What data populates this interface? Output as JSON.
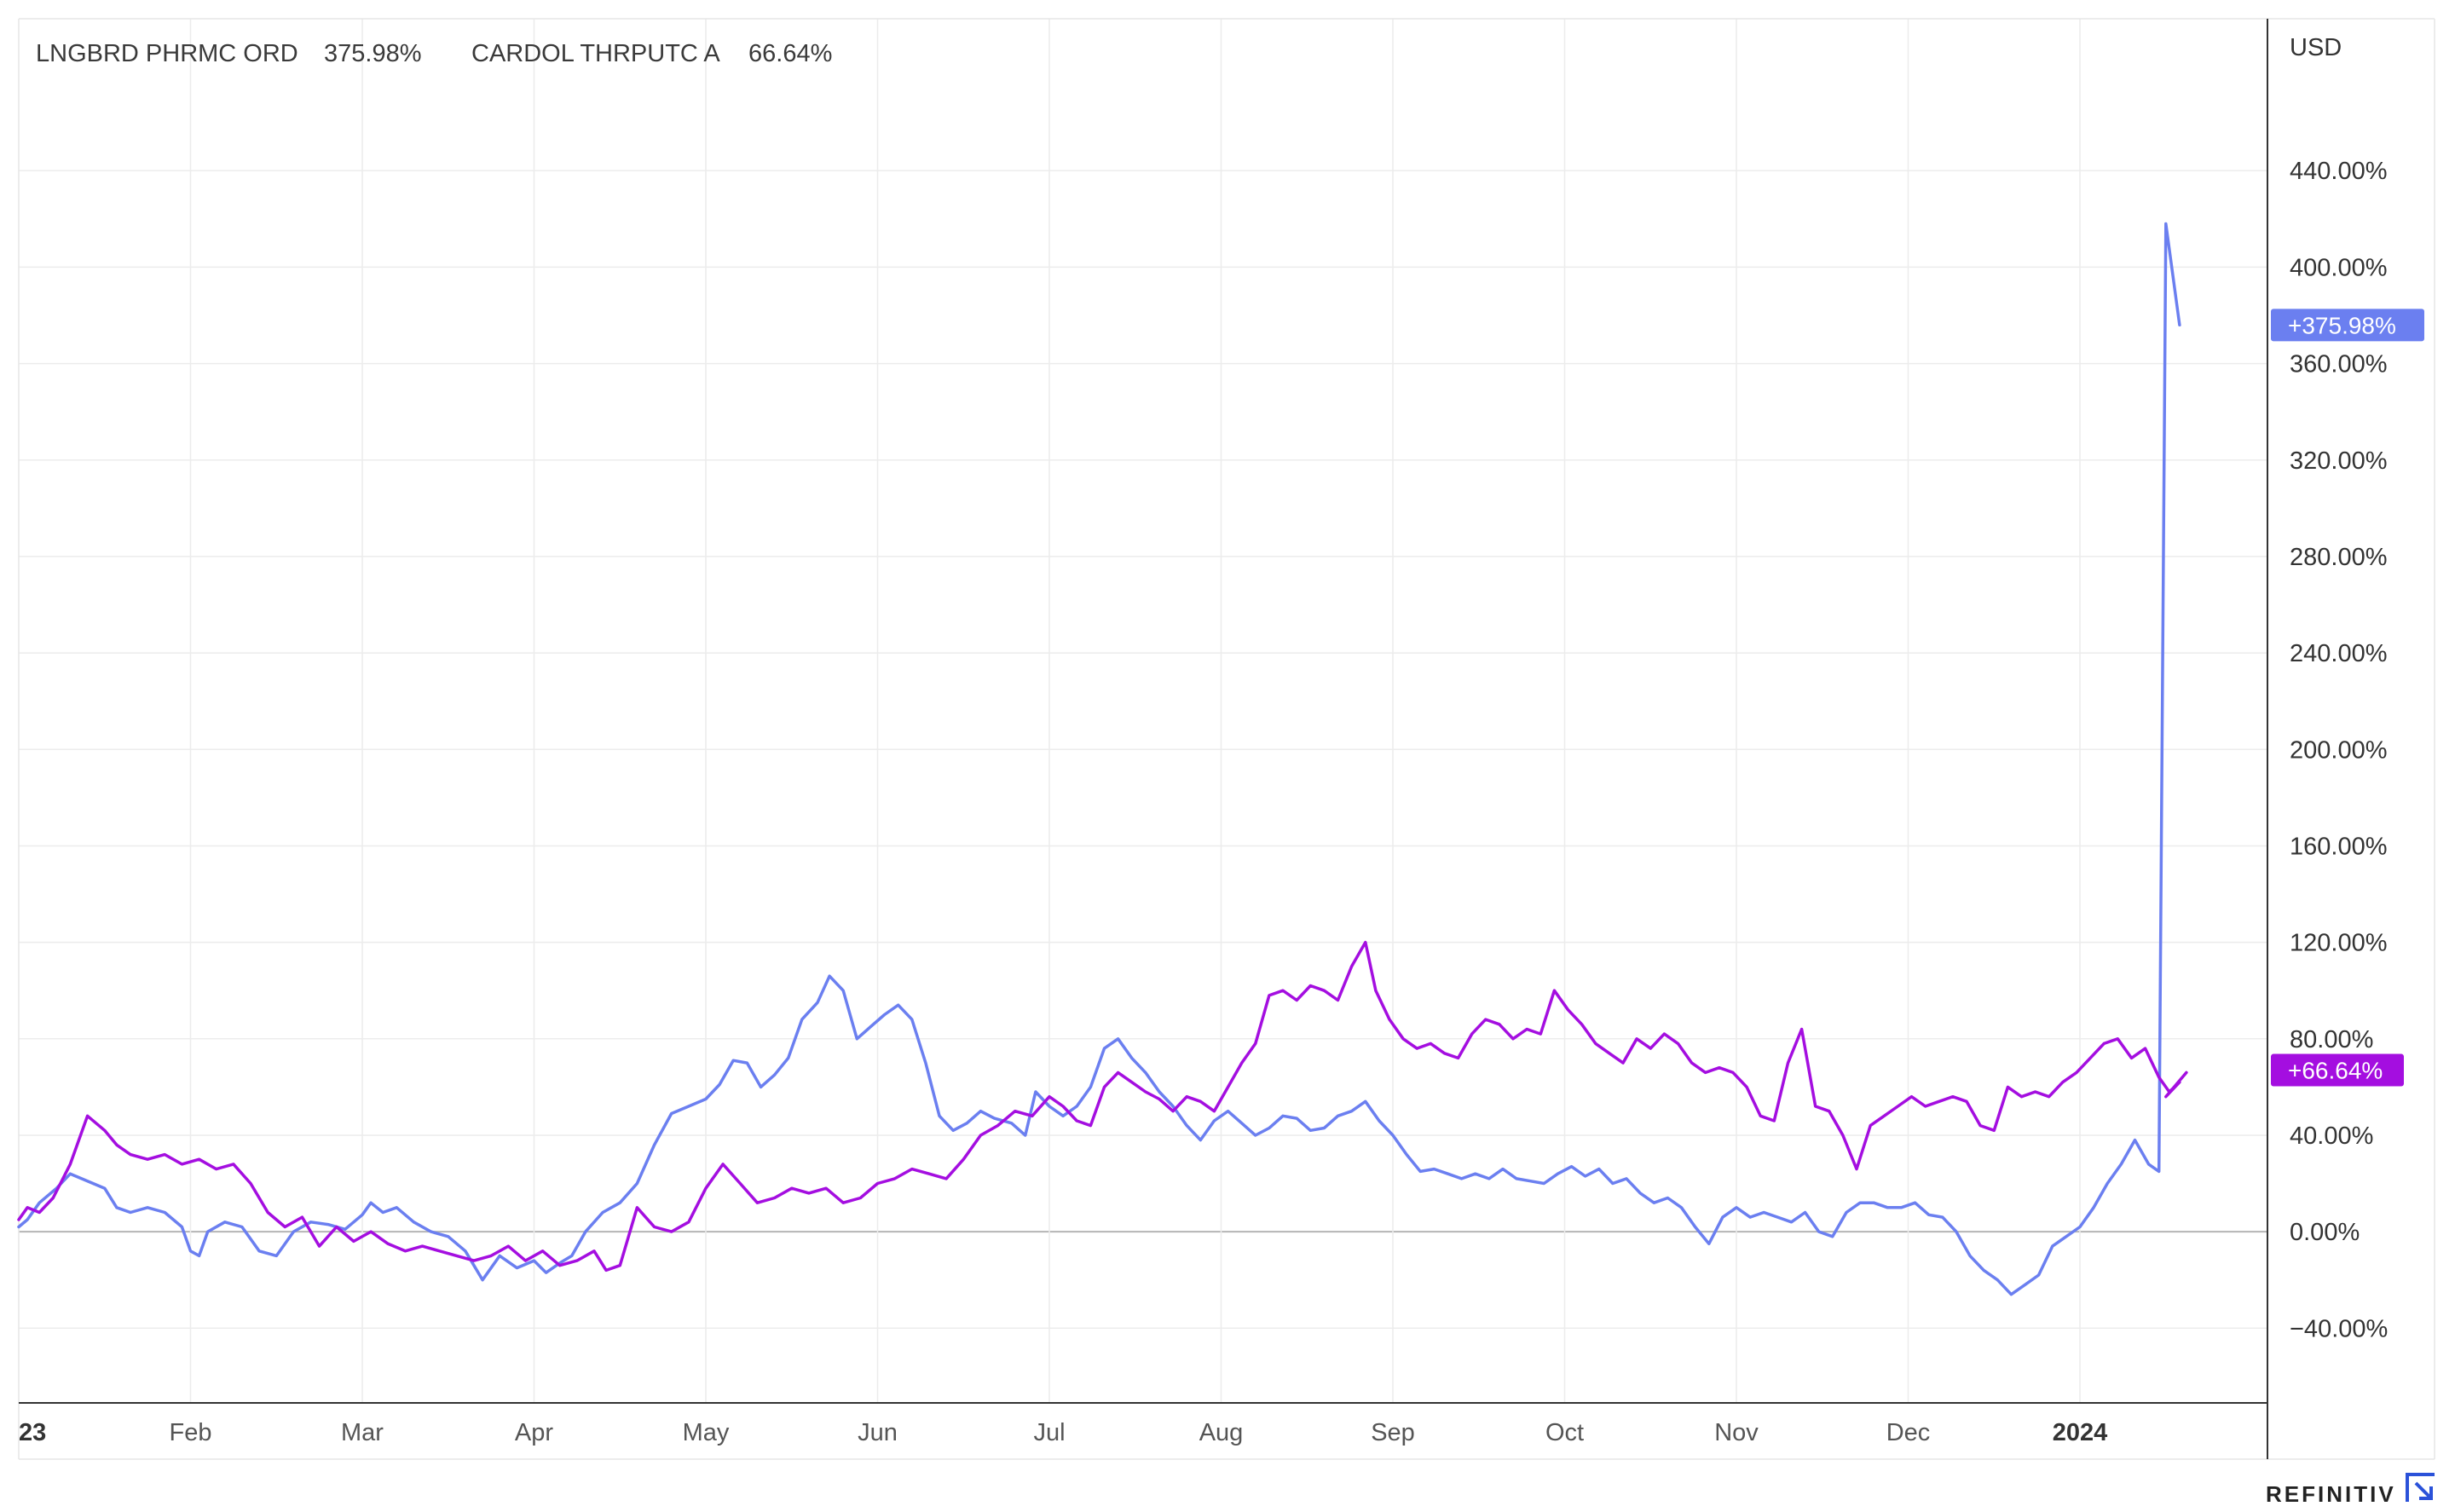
{
  "chart_data": {
    "type": "line",
    "unit_label": "USD",
    "y_tick_labels": [
      "440.00%",
      "400.00%",
      "360.00%",
      "320.00%",
      "280.00%",
      "240.00%",
      "200.00%",
      "160.00%",
      "120.00%",
      "80.00%",
      "40.00%",
      "0.00%",
      "−40.00%"
    ],
    "y_ticks": [
      440,
      400,
      360,
      320,
      280,
      240,
      200,
      160,
      120,
      80,
      40,
      0,
      -40
    ],
    "ylim": [
      -71,
      503
    ],
    "x_ticks": [
      {
        "label": "23",
        "t": 0,
        "bold": true
      },
      {
        "label": "Feb",
        "t": 1
      },
      {
        "label": "Mar",
        "t": 2
      },
      {
        "label": "Apr",
        "t": 3
      },
      {
        "label": "May",
        "t": 4
      },
      {
        "label": "Jun",
        "t": 5
      },
      {
        "label": "Jul",
        "t": 6
      },
      {
        "label": "Aug",
        "t": 7
      },
      {
        "label": "Sep",
        "t": 8
      },
      {
        "label": "Oct",
        "t": 9
      },
      {
        "label": "Nov",
        "t": 10
      },
      {
        "label": "Dec",
        "t": 11
      },
      {
        "label": "2024",
        "t": 12,
        "bold": true
      }
    ],
    "series": [
      {
        "name": "LNGBRD PHRMC ORD",
        "last_label": "375.98%",
        "badge_label": "+375.98%",
        "color": "#6b7ff0",
        "last_value": 376,
        "points": [
          [
            0.0,
            2
          ],
          [
            0.05,
            5
          ],
          [
            0.12,
            12
          ],
          [
            0.22,
            18
          ],
          [
            0.3,
            24
          ],
          [
            0.4,
            21
          ],
          [
            0.5,
            18
          ],
          [
            0.57,
            10
          ],
          [
            0.65,
            8
          ],
          [
            0.75,
            10
          ],
          [
            0.85,
            8
          ],
          [
            0.95,
            2
          ],
          [
            1.0,
            -8
          ],
          [
            1.05,
            -10
          ],
          [
            1.1,
            0
          ],
          [
            1.2,
            4
          ],
          [
            1.3,
            2
          ],
          [
            1.4,
            -8
          ],
          [
            1.5,
            -10
          ],
          [
            1.6,
            0
          ],
          [
            1.7,
            4
          ],
          [
            1.8,
            3
          ],
          [
            1.9,
            1
          ],
          [
            2.0,
            7
          ],
          [
            2.05,
            12
          ],
          [
            2.12,
            8
          ],
          [
            2.2,
            10
          ],
          [
            2.3,
            4
          ],
          [
            2.4,
            0
          ],
          [
            2.5,
            -2
          ],
          [
            2.6,
            -8
          ],
          [
            2.7,
            -20
          ],
          [
            2.8,
            -10
          ],
          [
            2.9,
            -15
          ],
          [
            3.0,
            -12
          ],
          [
            3.07,
            -17
          ],
          [
            3.15,
            -13
          ],
          [
            3.22,
            -10
          ],
          [
            3.3,
            0
          ],
          [
            3.4,
            8
          ],
          [
            3.5,
            12
          ],
          [
            3.6,
            20
          ],
          [
            3.7,
            36
          ],
          [
            3.8,
            49
          ],
          [
            3.9,
            52
          ],
          [
            4.0,
            55
          ],
          [
            4.08,
            61
          ],
          [
            4.16,
            71
          ],
          [
            4.24,
            70
          ],
          [
            4.32,
            60
          ],
          [
            4.4,
            65
          ],
          [
            4.48,
            72
          ],
          [
            4.56,
            88
          ],
          [
            4.65,
            95
          ],
          [
            4.72,
            106
          ],
          [
            4.8,
            100
          ],
          [
            4.88,
            80
          ],
          [
            4.96,
            85
          ],
          [
            5.04,
            90
          ],
          [
            5.12,
            94
          ],
          [
            5.2,
            88
          ],
          [
            5.28,
            70
          ],
          [
            5.36,
            48
          ],
          [
            5.44,
            42
          ],
          [
            5.52,
            45
          ],
          [
            5.6,
            50
          ],
          [
            5.68,
            47
          ],
          [
            5.78,
            45
          ],
          [
            5.86,
            40
          ],
          [
            5.92,
            58
          ],
          [
            6.0,
            52
          ],
          [
            6.08,
            48
          ],
          [
            6.16,
            52
          ],
          [
            6.24,
            60
          ],
          [
            6.32,
            76
          ],
          [
            6.4,
            80
          ],
          [
            6.48,
            72
          ],
          [
            6.56,
            66
          ],
          [
            6.64,
            58
          ],
          [
            6.72,
            52
          ],
          [
            6.8,
            44
          ],
          [
            6.88,
            38
          ],
          [
            6.96,
            46
          ],
          [
            7.04,
            50
          ],
          [
            7.12,
            45
          ],
          [
            7.2,
            40
          ],
          [
            7.28,
            43
          ],
          [
            7.36,
            48
          ],
          [
            7.44,
            47
          ],
          [
            7.52,
            42
          ],
          [
            7.6,
            43
          ],
          [
            7.68,
            48
          ],
          [
            7.76,
            50
          ],
          [
            7.84,
            54
          ],
          [
            7.92,
            46
          ],
          [
            8.0,
            40
          ],
          [
            8.08,
            32
          ],
          [
            8.16,
            25
          ],
          [
            8.24,
            26
          ],
          [
            8.32,
            24
          ],
          [
            8.4,
            22
          ],
          [
            8.48,
            24
          ],
          [
            8.56,
            22
          ],
          [
            8.64,
            26
          ],
          [
            8.72,
            22
          ],
          [
            8.8,
            21
          ],
          [
            8.88,
            20
          ],
          [
            8.96,
            24
          ],
          [
            9.04,
            27
          ],
          [
            9.12,
            23
          ],
          [
            9.2,
            26
          ],
          [
            9.28,
            20
          ],
          [
            9.36,
            22
          ],
          [
            9.44,
            16
          ],
          [
            9.52,
            12
          ],
          [
            9.6,
            14
          ],
          [
            9.68,
            10
          ],
          [
            9.76,
            2
          ],
          [
            9.84,
            -5
          ],
          [
            9.92,
            6
          ],
          [
            10.0,
            10
          ],
          [
            10.08,
            6
          ],
          [
            10.16,
            8
          ],
          [
            10.24,
            6
          ],
          [
            10.32,
            4
          ],
          [
            10.4,
            8
          ],
          [
            10.48,
            0
          ],
          [
            10.56,
            -2
          ],
          [
            10.64,
            8
          ],
          [
            10.72,
            12
          ],
          [
            10.8,
            12
          ],
          [
            10.88,
            10
          ],
          [
            10.96,
            10
          ],
          [
            11.04,
            12
          ],
          [
            11.12,
            7
          ],
          [
            11.2,
            6
          ],
          [
            11.28,
            0
          ],
          [
            11.36,
            -10
          ],
          [
            11.44,
            -16
          ],
          [
            11.52,
            -20
          ],
          [
            11.6,
            -26
          ],
          [
            11.68,
            -22
          ],
          [
            11.76,
            -18
          ],
          [
            11.84,
            -6
          ],
          [
            11.92,
            -2
          ],
          [
            12.0,
            2
          ],
          [
            12.08,
            10
          ],
          [
            12.16,
            20
          ],
          [
            12.24,
            28
          ],
          [
            12.32,
            38
          ],
          [
            12.4,
            28
          ],
          [
            12.46,
            25
          ],
          [
            12.5,
            418
          ],
          [
            12.58,
            376
          ]
        ]
      },
      {
        "name": "CARDOL THRPUTC A",
        "last_label": "66.64%",
        "badge_label": "+66.64%",
        "color": "#a40ee0",
        "last_value": 67,
        "points": [
          [
            0.0,
            5
          ],
          [
            0.05,
            10
          ],
          [
            0.12,
            8
          ],
          [
            0.2,
            14
          ],
          [
            0.3,
            28
          ],
          [
            0.4,
            48
          ],
          [
            0.5,
            42
          ],
          [
            0.57,
            36
          ],
          [
            0.65,
            32
          ],
          [
            0.75,
            30
          ],
          [
            0.85,
            32
          ],
          [
            0.95,
            28
          ],
          [
            1.05,
            30
          ],
          [
            1.15,
            26
          ],
          [
            1.25,
            28
          ],
          [
            1.35,
            20
          ],
          [
            1.45,
            8
          ],
          [
            1.55,
            2
          ],
          [
            1.65,
            6
          ],
          [
            1.75,
            -6
          ],
          [
            1.85,
            2
          ],
          [
            1.95,
            -4
          ],
          [
            2.05,
            0
          ],
          [
            2.15,
            -5
          ],
          [
            2.25,
            -8
          ],
          [
            2.35,
            -6
          ],
          [
            2.45,
            -8
          ],
          [
            2.55,
            -10
          ],
          [
            2.65,
            -12
          ],
          [
            2.75,
            -10
          ],
          [
            2.85,
            -6
          ],
          [
            2.95,
            -12
          ],
          [
            3.05,
            -8
          ],
          [
            3.15,
            -14
          ],
          [
            3.25,
            -12
          ],
          [
            3.35,
            -8
          ],
          [
            3.42,
            -16
          ],
          [
            3.5,
            -14
          ],
          [
            3.6,
            10
          ],
          [
            3.7,
            2
          ],
          [
            3.8,
            0
          ],
          [
            3.9,
            4
          ],
          [
            4.0,
            18
          ],
          [
            4.1,
            28
          ],
          [
            4.2,
            20
          ],
          [
            4.3,
            12
          ],
          [
            4.4,
            14
          ],
          [
            4.5,
            18
          ],
          [
            4.6,
            16
          ],
          [
            4.7,
            18
          ],
          [
            4.8,
            12
          ],
          [
            4.9,
            14
          ],
          [
            5.0,
            20
          ],
          [
            5.1,
            22
          ],
          [
            5.2,
            26
          ],
          [
            5.3,
            24
          ],
          [
            5.4,
            22
          ],
          [
            5.5,
            30
          ],
          [
            5.6,
            40
          ],
          [
            5.7,
            44
          ],
          [
            5.8,
            50
          ],
          [
            5.9,
            48
          ],
          [
            6.0,
            56
          ],
          [
            6.08,
            52
          ],
          [
            6.16,
            46
          ],
          [
            6.24,
            44
          ],
          [
            6.32,
            60
          ],
          [
            6.4,
            66
          ],
          [
            6.48,
            62
          ],
          [
            6.56,
            58
          ],
          [
            6.64,
            55
          ],
          [
            6.72,
            50
          ],
          [
            6.8,
            56
          ],
          [
            6.88,
            54
          ],
          [
            6.96,
            50
          ],
          [
            7.04,
            60
          ],
          [
            7.12,
            70
          ],
          [
            7.2,
            78
          ],
          [
            7.28,
            98
          ],
          [
            7.36,
            100
          ],
          [
            7.44,
            96
          ],
          [
            7.52,
            102
          ],
          [
            7.6,
            100
          ],
          [
            7.68,
            96
          ],
          [
            7.76,
            110
          ],
          [
            7.84,
            120
          ],
          [
            7.9,
            100
          ],
          [
            7.98,
            88
          ],
          [
            8.06,
            80
          ],
          [
            8.14,
            76
          ],
          [
            8.22,
            78
          ],
          [
            8.3,
            74
          ],
          [
            8.38,
            72
          ],
          [
            8.46,
            82
          ],
          [
            8.54,
            88
          ],
          [
            8.62,
            86
          ],
          [
            8.7,
            80
          ],
          [
            8.78,
            84
          ],
          [
            8.86,
            82
          ],
          [
            8.94,
            100
          ],
          [
            9.02,
            92
          ],
          [
            9.1,
            86
          ],
          [
            9.18,
            78
          ],
          [
            9.26,
            74
          ],
          [
            9.34,
            70
          ],
          [
            9.42,
            80
          ],
          [
            9.5,
            76
          ],
          [
            9.58,
            82
          ],
          [
            9.66,
            78
          ],
          [
            9.74,
            70
          ],
          [
            9.82,
            66
          ],
          [
            9.9,
            68
          ],
          [
            9.98,
            66
          ],
          [
            10.06,
            60
          ],
          [
            10.14,
            48
          ],
          [
            10.22,
            46
          ],
          [
            10.3,
            70
          ],
          [
            10.38,
            84
          ],
          [
            10.46,
            52
          ],
          [
            10.54,
            50
          ],
          [
            10.62,
            40
          ],
          [
            10.7,
            26
          ],
          [
            10.78,
            44
          ],
          [
            10.86,
            48
          ],
          [
            10.94,
            52
          ],
          [
            11.02,
            56
          ],
          [
            11.1,
            52
          ],
          [
            11.18,
            54
          ],
          [
            11.26,
            56
          ],
          [
            11.34,
            54
          ],
          [
            11.42,
            44
          ],
          [
            11.5,
            42
          ],
          [
            11.58,
            60
          ],
          [
            11.66,
            56
          ],
          [
            11.74,
            58
          ],
          [
            11.82,
            56
          ],
          [
            11.9,
            62
          ],
          [
            11.98,
            66
          ],
          [
            12.06,
            72
          ],
          [
            12.14,
            78
          ],
          [
            12.22,
            80
          ],
          [
            12.3,
            72
          ],
          [
            12.38,
            76
          ],
          [
            12.46,
            64
          ],
          [
            12.52,
            58
          ],
          [
            12.58,
            62
          ],
          [
            12.5,
            56
          ],
          [
            12.62,
            66
          ]
        ]
      }
    ],
    "grid": true,
    "legend_placement": "top-left"
  },
  "branding": {
    "logo_text": "REFINITIV",
    "logo_icon": "refinitiv-logo-icon"
  }
}
